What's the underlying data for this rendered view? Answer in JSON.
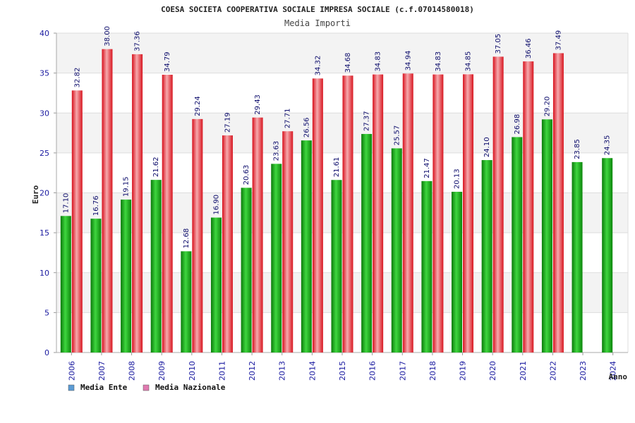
{
  "chart_data": {
    "type": "bar",
    "title": "COESA SOCIETA COOPERATIVA SOCIALE IMPRESA SOCIALE (c.f.07014580018)",
    "subtitle": "Media Importi",
    "xlabel": "Anno",
    "ylabel": "Euro",
    "ylim": [
      0,
      40
    ],
    "yticks": [
      0,
      5,
      10,
      15,
      20,
      25,
      30,
      35,
      40
    ],
    "grid": true,
    "legend_position": "bottom-left",
    "categories": [
      "2006",
      "2007",
      "2008",
      "2009",
      "2010",
      "2011",
      "2012",
      "2013",
      "2014",
      "2015",
      "2016",
      "2017",
      "2018",
      "2019",
      "2020",
      "2021",
      "2022",
      "2023",
      "2024"
    ],
    "series": [
      {
        "name": "Media Ente",
        "color": "#1aa81a",
        "legend_color": "#5b9bd5",
        "values": [
          17.1,
          16.76,
          19.15,
          21.62,
          12.68,
          16.9,
          20.63,
          23.63,
          26.56,
          21.61,
          27.37,
          25.57,
          21.47,
          20.13,
          24.1,
          26.98,
          29.2,
          23.85,
          24.35
        ],
        "labels": [
          "17.10",
          "16.76",
          "19.15",
          "21.62",
          "12.68",
          "16.90",
          "20.63",
          "23.63",
          "26.56",
          "21.61",
          "27.37",
          "25.57",
          "21.47",
          "20.13",
          "24.10",
          "26.98",
          "29.20",
          "23.85",
          "24.35"
        ]
      },
      {
        "name": "Media Nazionale",
        "color": "#e0202a",
        "legend_color": "#e07ab0",
        "values": [
          32.82,
          38.0,
          37.36,
          34.79,
          29.24,
          27.19,
          29.43,
          27.71,
          34.32,
          34.68,
          34.83,
          34.94,
          34.83,
          34.85,
          37.05,
          36.46,
          37.49,
          null,
          null
        ],
        "labels": [
          "32.82",
          "38.00",
          "37.36",
          "34.79",
          "29.24",
          "27.19",
          "29.43",
          "27.71",
          "34.32",
          "34.68",
          "34.83",
          "34.94",
          "34.83",
          "34.85",
          "37.05",
          "36.46",
          "37.49",
          null,
          null
        ]
      }
    ]
  }
}
